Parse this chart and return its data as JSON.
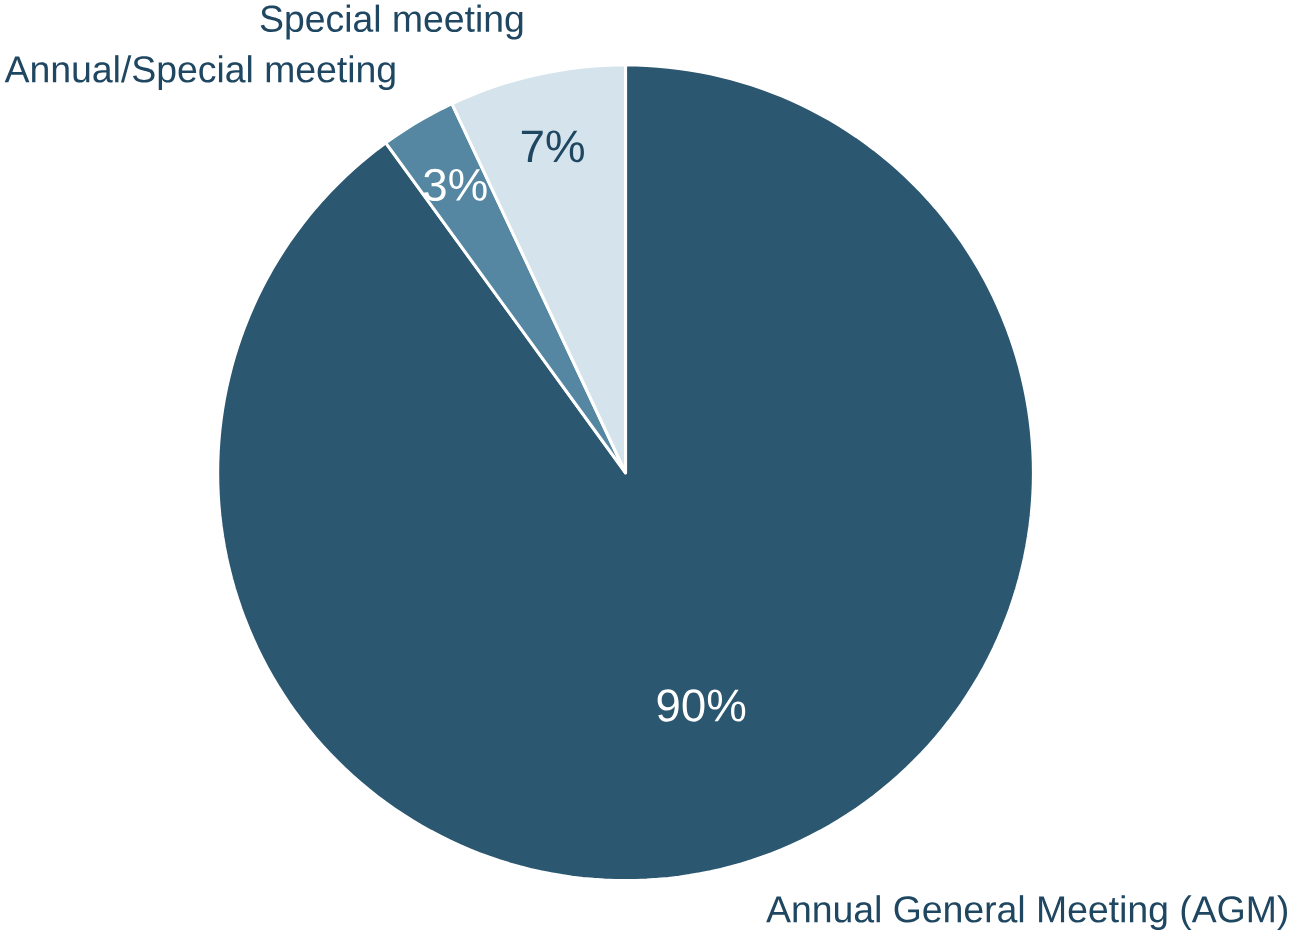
{
  "chart_data": {
    "type": "pie",
    "categories": [
      "Annual General Meeting (AGM)",
      "Annual/Special meeting",
      "Special meeting"
    ],
    "values": [
      90,
      3,
      7
    ],
    "colors": [
      "#2c5770",
      "#5587a2",
      "#d5e3ec"
    ],
    "value_labels": [
      "90%",
      "3%",
      "7%"
    ]
  }
}
